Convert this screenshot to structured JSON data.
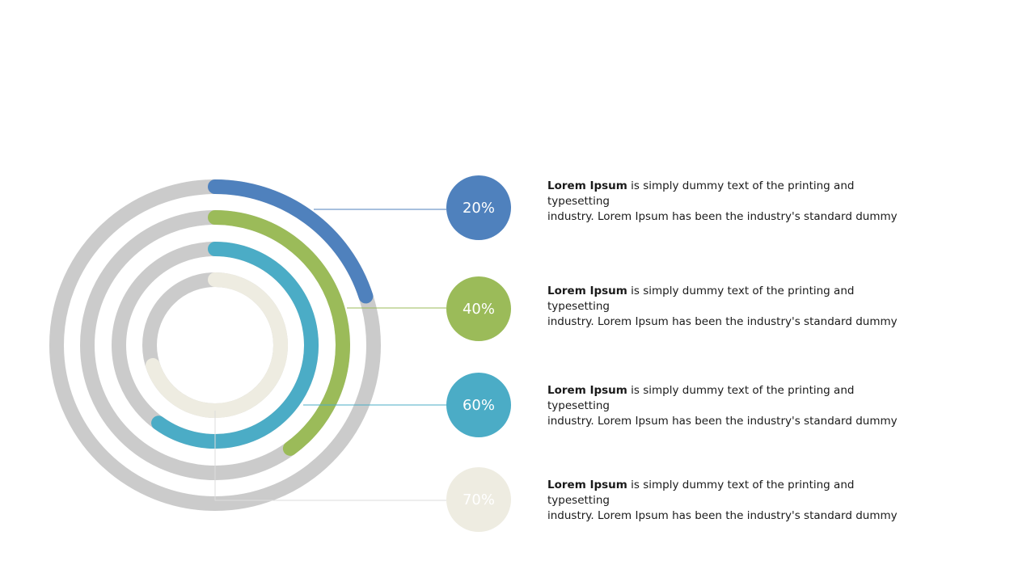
{
  "chart_data": {
    "type": "radial-bar",
    "track_color": "#cbcbcb",
    "series": [
      {
        "value": 20,
        "label": "20%",
        "color": "#4f81bd",
        "text_color": "#ffffff"
      },
      {
        "value": 40,
        "label": "40%",
        "color": "#9bbb59",
        "text_color": "#ffffff"
      },
      {
        "value": 60,
        "label": "60%",
        "color": "#4bacc6",
        "text_color": "#ffffff"
      },
      {
        "value": 70,
        "label": "70%",
        "color": "#eeece1",
        "text_color": "#ffffff"
      }
    ]
  },
  "descriptions": [
    {
      "bold": "Lorem Ipsum",
      "line1": " is simply dummy  text of the printing and typesetting",
      "line2": "industry.  Lorem  Ipsum has been the  industry's standard dummy"
    },
    {
      "bold": "Lorem Ipsum",
      "line1": " is simply dummy  text of the printing and typesetting",
      "line2": "industry.  Lorem  Ipsum has been the  industry's standard dummy"
    },
    {
      "bold": "Lorem Ipsum",
      "line1": " is simply dummy  text of the printing and typesetting",
      "line2": "industry.  Lorem  Ipsum has been the  industry's standard dummy"
    },
    {
      "bold": "Lorem Ipsum",
      "line1": " is simply dummy  text of the printing and typesetting",
      "line2": "industry.  Lorem  Ipsum has been the  industry's standard dummy"
    }
  ]
}
